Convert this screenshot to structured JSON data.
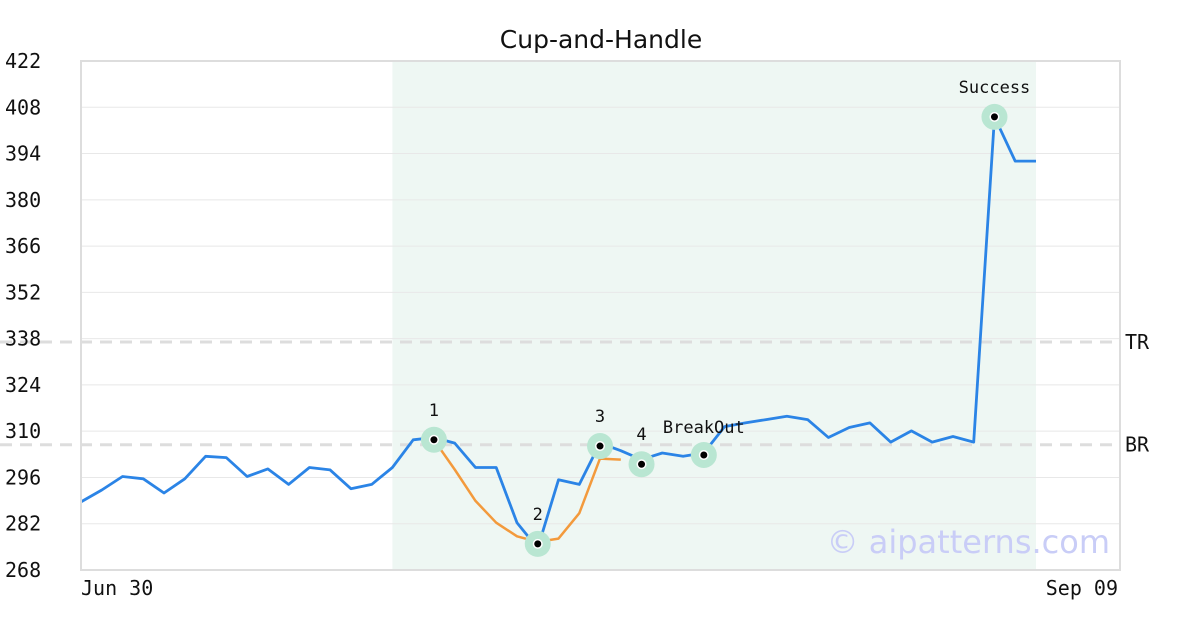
{
  "chart_data": {
    "type": "line",
    "title": "Cup-and-Handle",
    "xlabel": "",
    "ylabel": "",
    "ylim": [
      268,
      422
    ],
    "y_ticks": [
      "422",
      "408",
      "394",
      "380",
      "366",
      "352",
      "338",
      "324",
      "310",
      "296",
      "282",
      "268"
    ],
    "x_tick_labels": [
      "Jun 30",
      "Sep 09"
    ],
    "grid": "horizontal",
    "x_range": [
      0,
      46
    ],
    "highlight_range": [
      15,
      46
    ],
    "series": [
      {
        "color": "#2b84e6",
        "x": [
          0,
          1,
          2,
          3,
          4,
          5,
          6,
          7,
          8,
          9,
          10,
          11,
          12,
          13,
          14,
          15,
          16,
          17,
          18,
          19,
          20,
          21,
          22,
          23,
          24,
          25,
          26,
          27,
          28,
          29,
          30,
          31,
          32,
          33,
          34,
          35,
          36,
          37,
          38,
          39,
          40,
          41,
          42,
          43,
          44,
          45,
          46
        ],
        "values": [
          288.6,
          292.2,
          296.3,
          295.6,
          291.3,
          295.6,
          302.4,
          302.0,
          296.3,
          298.6,
          293.9,
          299.0,
          298.3,
          292.6,
          293.9,
          299.0,
          307.4,
          308.1,
          306.4,
          299.0,
          299.0,
          282.3,
          274.6,
          295.3,
          293.9,
          306.4,
          304.1,
          301.4,
          303.4,
          302.4,
          303.4,
          311.4,
          312.5,
          313.5,
          314.5,
          313.5,
          308.1,
          311.1,
          312.5,
          306.7,
          310.1,
          306.7,
          308.4,
          306.7,
          405.1,
          391.7,
          391.7
        ]
      },
      {
        "color": "#f39a3c",
        "x": [
          17,
          18,
          19,
          20,
          21,
          22,
          23,
          24,
          25,
          26
        ],
        "values": [
          307.4,
          298.4,
          288.9,
          282.3,
          278.2,
          276.5,
          277.5,
          285.2,
          301.7,
          301.4
        ]
      }
    ],
    "markers": [
      {
        "label": "1",
        "x": 17,
        "y": 307.4
      },
      {
        "label": "2",
        "x": 22,
        "y": 275.9
      },
      {
        "label": "3",
        "x": 25,
        "y": 305.5
      },
      {
        "label": "4",
        "x": 27,
        "y": 300.0
      },
      {
        "label": "BreakOut",
        "x": 30,
        "y": 302.8
      },
      {
        "label": "Success",
        "x": 44,
        "y": 405.1
      }
    ],
    "levels": [
      {
        "label": "TR",
        "value": 337.0
      },
      {
        "label": "BR",
        "value": 305.9
      }
    ],
    "colors": {
      "highlight": "#eef7f3",
      "marker_halo": "#b9e6d2",
      "level_line": "#dddddd",
      "grid": "#e8e8e8",
      "frame": "#dddddd"
    },
    "watermark": "© aipatterns.com"
  }
}
